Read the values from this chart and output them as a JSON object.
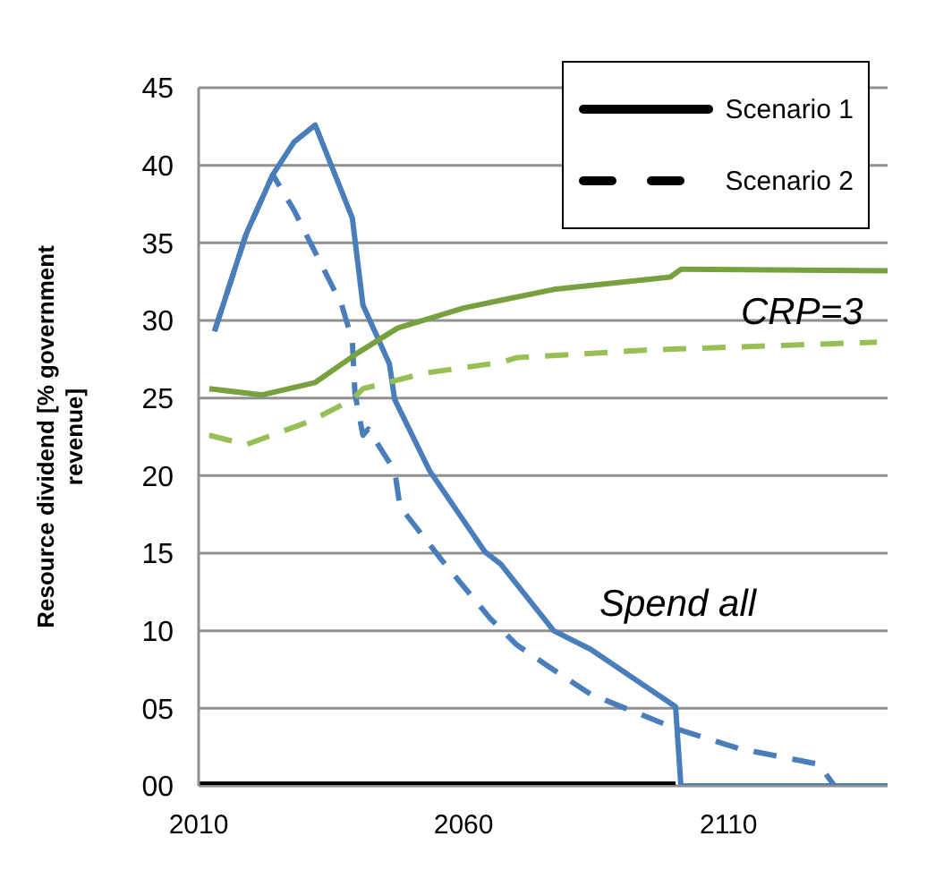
{
  "chart_data": {
    "type": "line",
    "ylabel": "Resource dividend [% government revenue]",
    "xlim": [
      2010,
      2140
    ],
    "xticks": [
      2010,
      2060,
      2110
    ],
    "ylim": [
      0,
      45
    ],
    "yticks": [
      {
        "value": 0,
        "label": "00"
      },
      {
        "value": 5,
        "label": "05"
      },
      10,
      15,
      20,
      25,
      30,
      35,
      40,
      45
    ],
    "grid": "y",
    "legend": "top right",
    "series": [
      {
        "color": "#4a7ebb",
        "x": [
          2013,
          2019,
          2024,
          2028,
          2032,
          2039,
          2041,
          2046,
          2047,
          2053.6,
          2064,
          2067,
          2077,
          2084,
          2100,
          2101,
          2140
        ],
        "values": [
          29.3,
          35.6,
          39.4,
          41.5,
          42.6,
          36.6,
          31,
          27.2,
          24.9,
          20.3,
          15.1,
          14.3,
          10,
          8.8,
          5.1,
          0,
          0
        ]
      },
      {
        "color": "#4a7ebb",
        "line_style": "dashed",
        "x": [
          2013,
          2019,
          2024,
          2028,
          2037,
          2039,
          2039.5,
          2041,
          2042,
          2047,
          2048,
          2056,
          2065,
          2070,
          2076,
          2084,
          2100,
          2112,
          2127,
          2130,
          2140
        ],
        "values": [
          29.3,
          35.6,
          39.4,
          37.1,
          31,
          28.7,
          25.3,
          22.6,
          23,
          20.3,
          18,
          14.5,
          10.8,
          9.1,
          7.7,
          5.9,
          3.7,
          2.4,
          1.4,
          0,
          0
        ]
      },
      {
        "color": "#77a03f",
        "x": [
          2012,
          2022,
          2032,
          2040,
          2047.5,
          2060,
          2067,
          2077,
          2099,
          2101,
          2140
        ],
        "values": [
          25.6,
          25.2,
          26,
          27.9,
          29.5,
          30.8,
          31.3,
          32,
          32.8,
          33.3,
          33.2
        ]
      },
      {
        "color": "#98bf55",
        "line_style": "dashed",
        "x": [
          2012,
          2019,
          2031,
          2039,
          2041,
          2052.6,
          2067,
          2070,
          2095,
          2138
        ],
        "values": [
          22.6,
          22,
          23.5,
          24.9,
          25.6,
          26.6,
          27.3,
          27.6,
          28.1,
          28.6
        ]
      },
      {
        "name": "Scenario 2",
        "color": "#000000",
        "line_style": "dashed"
      },
      {
        "name": "Scenario 1",
        "color": "#000000",
        "x": [
          2010,
          2100
        ],
        "values": [
          0,
          0
        ]
      }
    ],
    "annotations": [
      "Spend all",
      "CRP=3"
    ]
  }
}
